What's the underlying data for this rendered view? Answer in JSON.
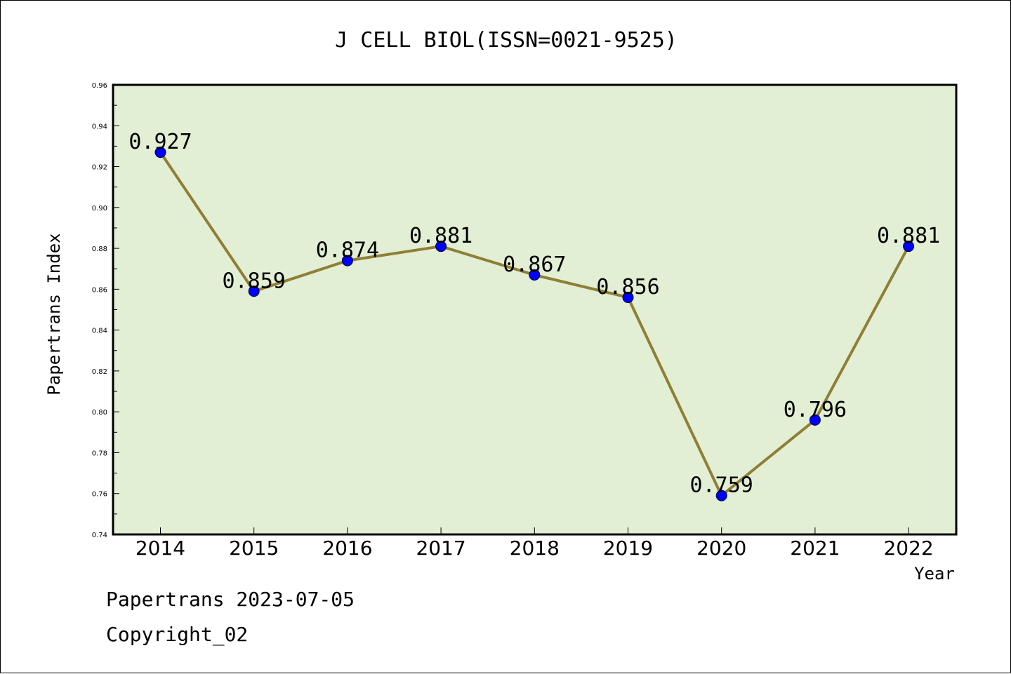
{
  "chart_data": {
    "type": "line",
    "title": "J CELL BIOL(ISSN=0021-9525)",
    "xlabel": "Year",
    "ylabel": "Papertrans Index",
    "categories": [
      "2014",
      "2015",
      "2016",
      "2017",
      "2018",
      "2019",
      "2020",
      "2021",
      "2022"
    ],
    "values": [
      0.927,
      0.859,
      0.874,
      0.881,
      0.867,
      0.856,
      0.759,
      0.796,
      0.881
    ],
    "data_labels": [
      "0.927",
      "0.859",
      "0.874",
      "0.881",
      "0.867",
      "0.856",
      "0.759",
      "0.796",
      "0.881"
    ],
    "ylim": [
      0.74,
      0.96
    ],
    "yticks": [
      "0.74",
      "0.76",
      "0.78",
      "0.80",
      "0.82",
      "0.84",
      "0.86",
      "0.88",
      "0.90",
      "0.92",
      "0.94",
      "0.96"
    ],
    "grid": false,
    "legend": "none",
    "colors": {
      "plot_background": "#e2efd5",
      "line": "#8f7f35",
      "marker": "#0000ff"
    }
  },
  "footer": {
    "line1": "Papertrans 2023-07-05",
    "line2": "Copyright_02"
  }
}
